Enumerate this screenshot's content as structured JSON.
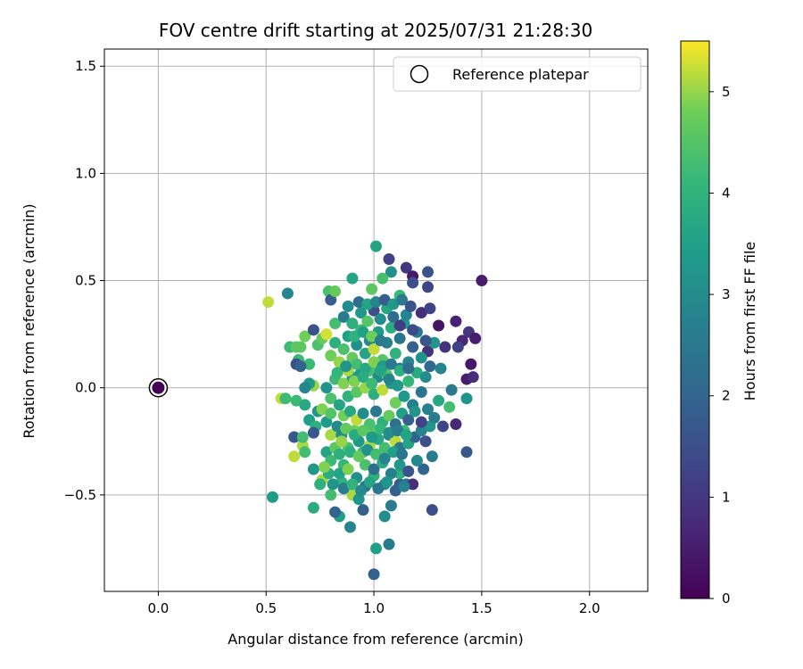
{
  "chart_data": {
    "type": "scatter",
    "title": "FOV centre drift starting at 2025/07/31 21:28:30",
    "xlabel": "Angular distance from reference (arcmin)",
    "ylabel": "Rotation from reference (arcmin)",
    "xlim": [
      -0.25,
      2.27
    ],
    "ylim": [
      -0.95,
      1.58
    ],
    "xticks": [
      0.0,
      0.5,
      1.0,
      1.5,
      2.0
    ],
    "xtick_labels": [
      "0.0",
      "0.5",
      "1.0",
      "1.5",
      "2.0"
    ],
    "yticks": [
      -0.5,
      0.0,
      0.5,
      1.0,
      1.5
    ],
    "ytick_labels": [
      "−0.5",
      "0.0",
      "0.5",
      "1.0",
      "1.5"
    ],
    "grid": true,
    "legend": {
      "position": "top-right",
      "entries": [
        "Reference platepar"
      ]
    },
    "colorbar": {
      "label": "Hours from first FF file",
      "range": [
        0,
        5.5
      ],
      "ticks": [
        0,
        1,
        2,
        3,
        4,
        5
      ],
      "tick_labels": [
        "0",
        "1",
        "2",
        "3",
        "4",
        "5"
      ],
      "colormap": "viridis"
    },
    "reference_point": {
      "x": 0.0,
      "y": 0.0,
      "hours": 0.0
    },
    "points": [
      [
        1.01,
        0.66,
        3.6
      ],
      [
        1.07,
        0.6,
        1.2
      ],
      [
        1.08,
        0.54,
        3.1
      ],
      [
        1.15,
        0.56,
        1.0
      ],
      [
        1.25,
        0.54,
        1.6
      ],
      [
        1.25,
        0.47,
        1.3
      ],
      [
        1.18,
        0.52,
        0.4
      ],
      [
        1.18,
        0.49,
        1.5
      ],
      [
        1.5,
        0.5,
        0.5
      ],
      [
        0.9,
        0.51,
        3.6
      ],
      [
        0.6,
        0.44,
        2.8
      ],
      [
        0.51,
        0.4,
        5.2
      ],
      [
        0.79,
        0.45,
        4.4
      ],
      [
        0.8,
        0.41,
        1.8
      ],
      [
        0.82,
        0.45,
        4.7
      ],
      [
        0.99,
        0.46,
        4.6
      ],
      [
        1.04,
        0.51,
        4.3
      ],
      [
        1.12,
        0.43,
        4.2
      ],
      [
        1.22,
        0.35,
        0.8
      ],
      [
        1.26,
        0.37,
        1.2
      ],
      [
        1.38,
        0.31,
        0.6
      ],
      [
        1.44,
        0.26,
        1.0
      ],
      [
        1.47,
        0.23,
        0.5
      ],
      [
        1.41,
        0.22,
        0.7
      ],
      [
        1.3,
        0.29,
        0.3
      ],
      [
        1.25,
        0.17,
        0.9
      ],
      [
        1.33,
        0.19,
        0.9
      ],
      [
        1.39,
        0.19,
        1.2
      ],
      [
        1.45,
        0.11,
        0.4
      ],
      [
        1.43,
        0.04,
        0.5
      ],
      [
        1.46,
        0.05,
        0.8
      ],
      [
        1.43,
        -0.05,
        3.2
      ],
      [
        1.43,
        -0.3,
        1.7
      ],
      [
        1.27,
        -0.57,
        1.5
      ],
      [
        1.12,
        -0.45,
        1.8
      ],
      [
        1.08,
        -0.55,
        2.6
      ],
      [
        1.07,
        -0.73,
        2.6
      ],
      [
        1.0,
        -0.87,
        1.9
      ],
      [
        1.01,
        -0.75,
        3.5
      ],
      [
        0.89,
        -0.65,
        2.8
      ],
      [
        0.84,
        -0.6,
        3.5
      ],
      [
        0.82,
        -0.58,
        2.0
      ],
      [
        0.95,
        -0.57,
        1.9
      ],
      [
        1.05,
        -0.6,
        3.0
      ],
      [
        0.72,
        -0.56,
        3.8
      ],
      [
        0.53,
        -0.51,
        3.4
      ],
      [
        0.57,
        -0.05,
        5.2
      ],
      [
        0.59,
        -0.05,
        4.2
      ],
      [
        0.63,
        -0.23,
        1.7
      ],
      [
        0.63,
        -0.32,
        5.2
      ],
      [
        0.67,
        -0.27,
        5.1
      ],
      [
        0.72,
        -0.38,
        3.3
      ],
      [
        0.76,
        -0.43,
        5.1
      ],
      [
        0.75,
        -0.45,
        3.9
      ],
      [
        0.8,
        -0.5,
        4.3
      ],
      [
        0.85,
        -0.44,
        4.0
      ],
      [
        0.9,
        -0.5,
        5.1
      ],
      [
        0.93,
        -0.52,
        3.2
      ],
      [
        0.96,
        -0.46,
        2.3
      ],
      [
        1.0,
        -0.41,
        3.9
      ],
      [
        1.05,
        -0.45,
        3.0
      ],
      [
        1.12,
        -0.4,
        3.9
      ],
      [
        1.15,
        -0.45,
        2.2
      ],
      [
        1.18,
        -0.45,
        0.8
      ],
      [
        1.23,
        -0.38,
        2.0
      ],
      [
        1.27,
        -0.32,
        2.6
      ],
      [
        1.32,
        -0.18,
        1.3
      ],
      [
        1.35,
        -0.09,
        4.3
      ],
      [
        1.38,
        -0.17,
        0.7
      ],
      [
        1.36,
        -0.01,
        2.5
      ],
      [
        1.31,
        0.09,
        2.8
      ],
      [
        1.28,
        0.21,
        3.2
      ],
      [
        0.61,
        0.19,
        4.2
      ],
      [
        0.64,
        0.19,
        4.6
      ],
      [
        0.66,
        0.19,
        4.6
      ],
      [
        0.65,
        0.13,
        4.2
      ],
      [
        0.68,
        0.24,
        4.8
      ],
      [
        0.72,
        0.27,
        1.6
      ],
      [
        0.74,
        0.2,
        4.4
      ],
      [
        0.76,
        0.23,
        4.7
      ],
      [
        0.78,
        0.25,
        5.3
      ],
      [
        0.7,
        0.11,
        4.2
      ],
      [
        0.64,
        0.11,
        1.5
      ],
      [
        0.66,
        0.1,
        2.0
      ],
      [
        0.72,
        0.01,
        5.0
      ],
      [
        0.7,
        0.02,
        3.4
      ],
      [
        0.68,
        0.0,
        2.8
      ],
      [
        0.64,
        -0.06,
        4.2
      ],
      [
        0.68,
        -0.08,
        3.7
      ],
      [
        0.7,
        -0.15,
        3.5
      ],
      [
        0.74,
        -0.11,
        3.2
      ],
      [
        0.73,
        -0.18,
        3.9
      ],
      [
        0.67,
        -0.23,
        4.3
      ],
      [
        0.68,
        -0.3,
        4.3
      ],
      [
        0.72,
        -0.21,
        1.7
      ],
      [
        0.78,
        -0.3,
        3.6
      ],
      [
        0.8,
        -0.22,
        5.1
      ],
      [
        0.82,
        -0.28,
        4.6
      ],
      [
        0.84,
        -0.31,
        3.9
      ],
      [
        0.86,
        -0.36,
        4.1
      ],
      [
        0.85,
        -0.22,
        3.0
      ],
      [
        0.88,
        -0.28,
        4.4
      ],
      [
        0.91,
        -0.2,
        4.8
      ],
      [
        0.93,
        -0.25,
        3.3
      ],
      [
        0.95,
        -0.3,
        4.2
      ],
      [
        0.98,
        -0.27,
        5.1
      ],
      [
        1.0,
        -0.2,
        4.7
      ],
      [
        1.02,
        -0.24,
        3.7
      ],
      [
        1.05,
        -0.28,
        4.3
      ],
      [
        1.07,
        -0.22,
        2.8
      ],
      [
        1.1,
        -0.25,
        5.2
      ],
      [
        1.12,
        -0.28,
        2.5
      ],
      [
        1.14,
        -0.2,
        4.2
      ],
      [
        1.16,
        -0.26,
        3.6
      ],
      [
        1.19,
        -0.23,
        2.0
      ],
      [
        1.22,
        -0.2,
        2.8
      ],
      [
        1.24,
        -0.25,
        1.5
      ],
      [
        1.26,
        -0.18,
        3.2
      ],
      [
        1.28,
        -0.14,
        2.6
      ],
      [
        1.3,
        -0.06,
        3.7
      ],
      [
        0.78,
        0.0,
        3.2
      ],
      [
        0.8,
        -0.05,
        4.4
      ],
      [
        0.82,
        0.04,
        4.2
      ],
      [
        0.84,
        -0.08,
        3.6
      ],
      [
        0.86,
        0.02,
        4.9
      ],
      [
        0.88,
        -0.04,
        4.0
      ],
      [
        0.9,
        0.05,
        3.5
      ],
      [
        0.92,
        -0.02,
        4.6
      ],
      [
        0.94,
        0.07,
        3.2
      ],
      [
        0.96,
        0.0,
        5.0
      ],
      [
        0.98,
        0.08,
        4.3
      ],
      [
        1.0,
        -0.03,
        3.9
      ],
      [
        1.02,
        0.05,
        2.9
      ],
      [
        1.04,
        -0.01,
        5.2
      ],
      [
        1.06,
        0.06,
        4.5
      ],
      [
        1.08,
        0.02,
        3.4
      ],
      [
        1.1,
        -0.07,
        4.8
      ],
      [
        1.12,
        0.09,
        2.6
      ],
      [
        1.14,
        -0.04,
        3.3
      ],
      [
        1.16,
        0.03,
        4.1
      ],
      [
        1.18,
        -0.08,
        2.7
      ],
      [
        1.2,
        0.07,
        3.8
      ],
      [
        1.22,
        -0.02,
        2.4
      ],
      [
        1.24,
        0.05,
        3.0
      ],
      [
        0.8,
        0.15,
        4.8
      ],
      [
        0.82,
        0.21,
        3.9
      ],
      [
        0.84,
        0.12,
        5.0
      ],
      [
        0.86,
        0.18,
        4.4
      ],
      [
        0.88,
        0.24,
        3.5
      ],
      [
        0.9,
        0.14,
        4.7
      ],
      [
        0.92,
        0.2,
        3.1
      ],
      [
        0.94,
        0.27,
        4.2
      ],
      [
        0.96,
        0.16,
        3.6
      ],
      [
        0.98,
        0.22,
        2.9
      ],
      [
        1.0,
        0.18,
        5.2
      ],
      [
        1.02,
        0.26,
        3.3
      ],
      [
        1.04,
        0.13,
        4.5
      ],
      [
        1.06,
        0.21,
        2.7
      ],
      [
        1.08,
        0.28,
        3.8
      ],
      [
        1.1,
        0.16,
        4.0
      ],
      [
        1.12,
        0.23,
        2.4
      ],
      [
        1.14,
        0.3,
        3.4
      ],
      [
        1.16,
        0.12,
        2.9
      ],
      [
        1.18,
        0.19,
        1.9
      ],
      [
        1.2,
        0.26,
        2.5
      ],
      [
        1.22,
        0.14,
        3.1
      ],
      [
        1.24,
        0.22,
        1.7
      ],
      [
        1.26,
        0.1,
        2.1
      ],
      [
        0.82,
        0.3,
        4.3
      ],
      [
        0.86,
        0.33,
        2.6
      ],
      [
        0.9,
        0.3,
        3.9
      ],
      [
        0.94,
        0.35,
        3.3
      ],
      [
        0.97,
        0.31,
        4.5
      ],
      [
        1.0,
        0.36,
        1.5
      ],
      [
        1.03,
        0.32,
        3.0
      ],
      [
        1.06,
        0.37,
        3.7
      ],
      [
        1.09,
        0.33,
        2.2
      ],
      [
        1.12,
        0.29,
        1.1
      ],
      [
        1.15,
        0.34,
        2.8
      ],
      [
        1.18,
        0.27,
        1.4
      ],
      [
        0.76,
        -0.1,
        4.9
      ],
      [
        0.78,
        -0.16,
        3.4
      ],
      [
        0.8,
        -0.12,
        4.5
      ],
      [
        0.83,
        -0.18,
        2.9
      ],
      [
        0.86,
        -0.13,
        4.8
      ],
      [
        0.89,
        -0.11,
        3.7
      ],
      [
        0.92,
        -0.15,
        5.2
      ],
      [
        0.95,
        -0.12,
        3.0
      ],
      [
        0.98,
        -0.17,
        4.4
      ],
      [
        1.01,
        -0.11,
        2.5
      ],
      [
        1.04,
        -0.16,
        3.9
      ],
      [
        1.07,
        -0.13,
        4.7
      ],
      [
        1.1,
        -0.17,
        2.3
      ],
      [
        1.13,
        -0.12,
        3.5
      ],
      [
        1.16,
        -0.15,
        1.9
      ],
      [
        1.19,
        -0.11,
        3.2
      ],
      [
        1.22,
        -0.16,
        1.2
      ],
      [
        1.25,
        -0.1,
        2.7
      ],
      [
        0.84,
        -0.4,
        3.6
      ],
      [
        0.88,
        -0.38,
        4.9
      ],
      [
        0.92,
        -0.42,
        3.1
      ],
      [
        0.96,
        -0.36,
        4.4
      ],
      [
        1.0,
        -0.38,
        2.2
      ],
      [
        1.04,
        -0.35,
        3.8
      ],
      [
        1.08,
        -0.4,
        2.7
      ],
      [
        1.12,
        -0.36,
        3.3
      ],
      [
        1.16,
        -0.39,
        1.6
      ],
      [
        1.2,
        -0.34,
        2.9
      ],
      [
        0.88,
        0.08,
        5.1
      ],
      [
        0.92,
        0.11,
        4.3
      ],
      [
        0.96,
        0.09,
        3.7
      ],
      [
        1.0,
        0.12,
        4.9
      ],
      [
        1.04,
        0.1,
        3.4
      ],
      [
        1.08,
        0.11,
        2.5
      ],
      [
        1.12,
        0.08,
        3.9
      ],
      [
        1.16,
        0.09,
        2.2
      ],
      [
        0.87,
        -0.19,
        4.7
      ],
      [
        0.91,
        -0.22,
        3.8
      ],
      [
        0.95,
        -0.2,
        4.6
      ],
      [
        0.99,
        -0.23,
        3.4
      ],
      [
        1.03,
        -0.19,
        4.1
      ],
      [
        1.07,
        -0.21,
        3.0
      ],
      [
        1.11,
        -0.2,
        2.6
      ],
      [
        1.15,
        -0.22,
        3.6
      ],
      [
        0.91,
        0.24,
        4.0
      ],
      [
        0.95,
        0.26,
        3.5
      ],
      [
        0.99,
        0.24,
        4.8
      ],
      [
        1.03,
        0.22,
        2.6
      ],
      [
        0.83,
        0.07,
        4.1
      ],
      [
        0.87,
        0.1,
        3.2
      ],
      [
        0.91,
        0.03,
        4.9
      ],
      [
        0.95,
        0.05,
        3.8
      ],
      [
        0.99,
        0.02,
        4.2
      ],
      [
        1.03,
        0.08,
        3.6
      ],
      [
        1.07,
        0.04,
        2.8
      ],
      [
        1.11,
        0.01,
        3.3
      ],
      [
        0.85,
        -0.25,
        5.0
      ],
      [
        0.89,
        -0.3,
        3.9
      ],
      [
        0.93,
        -0.32,
        4.7
      ],
      [
        0.97,
        -0.29,
        3.1
      ],
      [
        1.01,
        -0.31,
        4.3
      ],
      [
        1.05,
        -0.33,
        2.8
      ],
      [
        1.09,
        -0.3,
        3.5
      ],
      [
        1.13,
        -0.31,
        2.4
      ],
      [
        0.88,
        0.38,
        3.0
      ],
      [
        0.93,
        0.4,
        2.2
      ],
      [
        0.97,
        0.39,
        3.6
      ],
      [
        1.01,
        0.4,
        2.8
      ],
      [
        1.05,
        0.41,
        1.8
      ],
      [
        1.09,
        0.39,
        3.3
      ],
      [
        1.13,
        0.41,
        2.5
      ],
      [
        1.17,
        0.38,
        1.6
      ],
      [
        0.8,
        -0.34,
        4.2
      ],
      [
        0.79,
        -0.4,
        3.8
      ],
      [
        0.77,
        -0.37,
        4.9
      ],
      [
        0.81,
        -0.45,
        3.2
      ],
      [
        0.86,
        -0.47,
        2.6
      ],
      [
        0.9,
        -0.45,
        4.0
      ],
      [
        0.94,
        -0.48,
        2.9
      ],
      [
        0.98,
        -0.44,
        3.6
      ],
      [
        1.02,
        -0.47,
        2.4
      ],
      [
        1.06,
        -0.44,
        3.2
      ],
      [
        1.1,
        -0.48,
        1.9
      ],
      [
        1.14,
        -0.46,
        2.7
      ]
    ]
  }
}
